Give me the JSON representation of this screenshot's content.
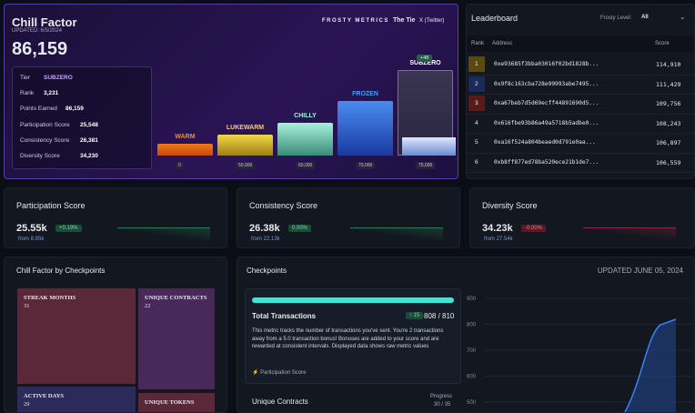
{
  "header": {
    "title": "Chill Factor",
    "updated": "UPDATED: 6/5/2024",
    "score": "86,159",
    "brand": "FROSTY METRICS",
    "partner": "The Tie",
    "social": "X (Twitter)"
  },
  "stats": [
    [
      "Tier",
      "SUBZERO"
    ],
    [
      "Rank",
      "3,231"
    ],
    [
      "Points Earned",
      "86,159"
    ],
    [
      "Participation Score",
      "25,548"
    ],
    [
      "Consistency Score",
      "26,381"
    ],
    [
      "Diversity Score",
      "34,230"
    ]
  ],
  "tiers": [
    {
      "name": "WARM",
      "threshold": "0"
    },
    {
      "name": "LUKEWARM",
      "threshold": "50,000"
    },
    {
      "name": "CHILLY",
      "threshold": "60,000"
    },
    {
      "name": "FROZEN",
      "threshold": "70,000"
    },
    {
      "name": "SUBZERO",
      "threshold": "75,000",
      "badge": "+48"
    }
  ],
  "leaderboard": {
    "title": "Leaderboard",
    "filter_label": "Frosty Level:",
    "filter_value": "All",
    "columns": [
      "Rank",
      "Address",
      "Score"
    ],
    "rows": [
      [
        "1",
        "0xe93685f3bba03016f02bd1828b...",
        "114,910"
      ],
      [
        "2",
        "0x9f8c163cba728e99993abe7495...",
        "111,429"
      ],
      [
        "3",
        "0xa67beb7d5d69ecff44891690d5...",
        "109,756"
      ],
      [
        "4",
        "0x616fbe93b86a49a5718b5adbe0...",
        "108,243"
      ],
      [
        "5",
        "0xa16f524a804beaed0d791e0aa...",
        "106,897"
      ],
      [
        "6",
        "0xb8ff877ed78ba520ece21b1de7...",
        "106,559"
      ]
    ]
  },
  "cards": [
    {
      "title": "Participation Score",
      "value": "25.55k",
      "change": "+0.19%",
      "from": "from 8.85k"
    },
    {
      "title": "Consistency Score",
      "value": "26.38k",
      "change": "0.00%",
      "from": "from 22.13k"
    },
    {
      "title": "Diversity Score",
      "value": "34.23k",
      "change": "-0.00%",
      "from": "from 27.54k"
    }
  ],
  "checkpoint_map": {
    "title": "Chill Factor by Checkpoints",
    "items": [
      {
        "name": "STREAK MONTHS",
        "value": "31"
      },
      {
        "name": "UNIQUE CONTRACTS",
        "value": "22"
      },
      {
        "name": "ACTIVE DAYS",
        "value": "29"
      },
      {
        "name": "UNIQUE TOKENS"
      }
    ]
  },
  "checkpoints": {
    "title": "Checkpoints",
    "updated": "UPDATED JUNE 05, 2024",
    "metric": "Total Transactions",
    "delta": "↑ 15",
    "progress": "808 / 810",
    "description": "This metric tracks the number of transactions you've sent. You're 2 transactions away from a 5.0 transaction bonus! Bonuses are added to your score and are rewarded at consistent intervals. Displayed data shows raw metric values",
    "category": "Participation Score",
    "next_metric": "Unique Contracts",
    "next_label": "Progress",
    "next_progress": "30 / 35",
    "yticks": [
      "900",
      "800",
      "700",
      "600",
      "500"
    ]
  }
}
